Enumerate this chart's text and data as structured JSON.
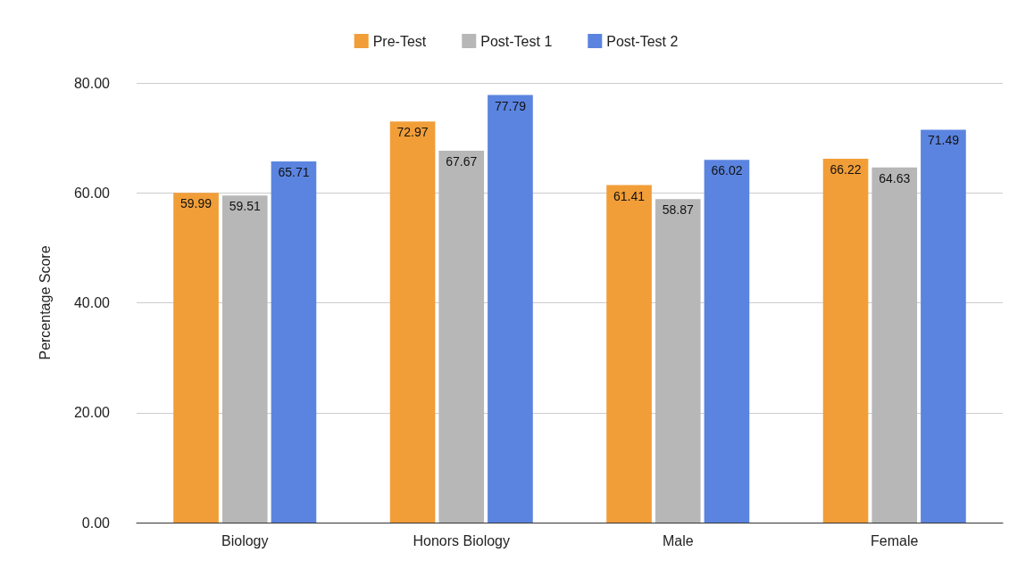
{
  "chart_data": {
    "type": "bar",
    "ylabel": "Percentage Score",
    "categories": [
      "Biology",
      "Honors Biology",
      "Male",
      "Female"
    ],
    "series": [
      {
        "name": "Pre-Test",
        "color": "#f19e38",
        "values": [
          59.99,
          72.97,
          61.41,
          66.22
        ]
      },
      {
        "name": "Post-Test 1",
        "color": "#b7b7b7",
        "values": [
          59.51,
          67.67,
          58.87,
          64.63
        ]
      },
      {
        "name": "Post-Test 2",
        "color": "#5b84e0",
        "values": [
          65.71,
          77.79,
          66.02,
          71.49
        ]
      }
    ],
    "ylim": [
      0,
      80
    ],
    "yticks": [
      {
        "value": 0,
        "label": "0.00"
      },
      {
        "value": 20,
        "label": "20.00"
      },
      {
        "value": 40,
        "label": "40.00"
      },
      {
        "value": 60,
        "label": "60.00"
      },
      {
        "value": 80,
        "label": "80.00"
      }
    ],
    "grid": "y",
    "legend": "top",
    "data_labels": true
  }
}
